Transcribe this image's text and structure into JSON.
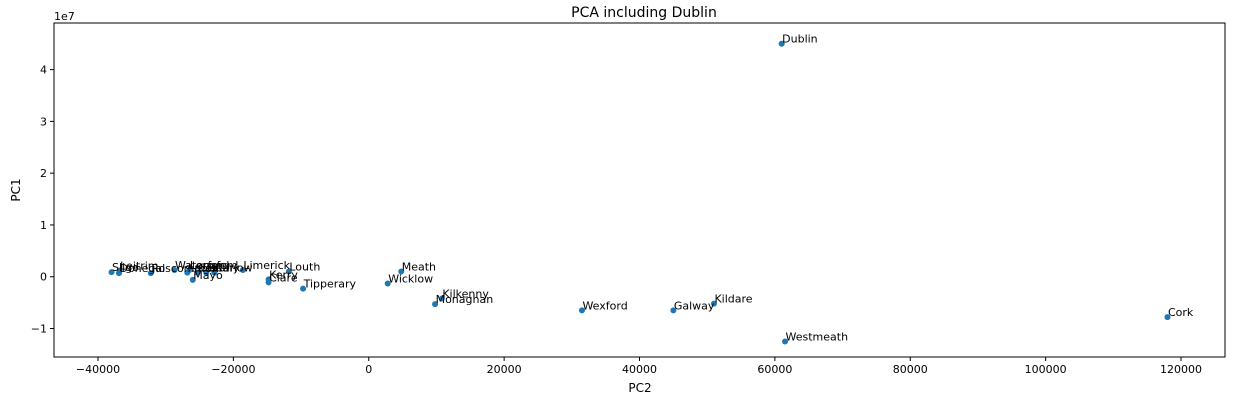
{
  "chart_data": {
    "type": "scatter",
    "title": "PCA including Dublin",
    "xlabel": "PC2",
    "ylabel": "PC1",
    "y_exponent_label": "1e7",
    "xlim": [
      -46500,
      126500
    ],
    "ylim": [
      -15500000,
      49000000
    ],
    "x_ticks": [
      -40000,
      -20000,
      0,
      20000,
      40000,
      60000,
      80000,
      100000,
      120000
    ],
    "x_tick_labels": [
      "−40000",
      "−20000",
      "0",
      "20000",
      "40000",
      "60000",
      "80000",
      "100000",
      "120000"
    ],
    "y_ticks": [
      -10000000,
      0,
      10000000,
      20000000,
      30000000,
      40000000
    ],
    "y_tick_labels": [
      "−1",
      "0",
      "1",
      "2",
      "3",
      "4"
    ],
    "grid": false,
    "color": "#1f77b4",
    "points": [
      {
        "label": "Dublin",
        "x": 61000,
        "y": 45000000
      },
      {
        "label": "Cork",
        "x": 118000,
        "y": -7800000
      },
      {
        "label": "Westmeath",
        "x": 61500,
        "y": -12500000
      },
      {
        "label": "Kildare",
        "x": 51000,
        "y": -5200000
      },
      {
        "label": "Galway",
        "x": 45000,
        "y": -6500000
      },
      {
        "label": "Wexford",
        "x": 31500,
        "y": -6500000
      },
      {
        "label": "Kilkenny",
        "x": 10800,
        "y": -4200000
      },
      {
        "label": "Monaghan",
        "x": 9800,
        "y": -5300000
      },
      {
        "label": "Meath",
        "x": 4800,
        "y": 1000000
      },
      {
        "label": "Wicklow",
        "x": 2800,
        "y": -1300000
      },
      {
        "label": "Tipperary",
        "x": -9700,
        "y": -2300000
      },
      {
        "label": "Louth",
        "x": -11800,
        "y": 1000000
      },
      {
        "label": "Kerry",
        "x": -14800,
        "y": -500000
      },
      {
        "label": "Clare",
        "x": -14800,
        "y": -1100000
      },
      {
        "label": "Limerick",
        "x": -18600,
        "y": 1300000
      },
      {
        "label": "Carlow",
        "x": -22800,
        "y": 800000
      },
      {
        "label": "Offaly",
        "x": -24000,
        "y": 800000
      },
      {
        "label": "Cavan",
        "x": -25300,
        "y": 800000
      },
      {
        "label": "Laois",
        "x": -26800,
        "y": 800000
      },
      {
        "label": "Mayo",
        "x": -26000,
        "y": -600000
      },
      {
        "label": "Longford",
        "x": -26500,
        "y": 1300000
      },
      {
        "label": "Waterford",
        "x": -28700,
        "y": 1300000
      },
      {
        "label": "Roscommon",
        "x": -32200,
        "y": 700000
      },
      {
        "label": "Leitrim",
        "x": -36800,
        "y": 1200000
      },
      {
        "label": "Donegal",
        "x": -36900,
        "y": 700000
      },
      {
        "label": "Sligo",
        "x": -38000,
        "y": 900000
      }
    ]
  }
}
